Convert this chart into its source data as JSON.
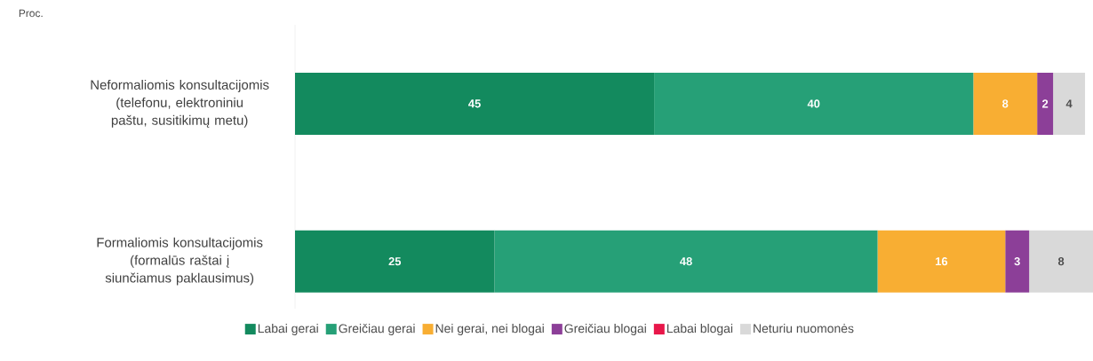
{
  "chart_data": {
    "type": "bar",
    "orientation": "horizontal",
    "stacked": true,
    "annotations": [
      "Proc."
    ],
    "categories": [
      "Neformaliomis konsultacijomis (telefonu, elektroniniu paštu, susitikimų metu)",
      "Formaliomis konsultacijomis (formalūs raštai į siunčiamus paklausimus)"
    ],
    "series": [
      {
        "name": "Labai gerai",
        "color": "#138a5e",
        "values": [
          45,
          25
        ],
        "value_labels": [
          "45",
          "25"
        ]
      },
      {
        "name": "Greičiau gerai",
        "color": "#26a077",
        "values": [
          40,
          48
        ],
        "value_labels": [
          "40",
          "48"
        ]
      },
      {
        "name": "Nei gerai, nei blogai",
        "color": "#f8ae33",
        "values": [
          8,
          16
        ],
        "value_labels": [
          "8",
          "16"
        ]
      },
      {
        "name": "Greičiau blogai",
        "color": "#8c3f98",
        "values": [
          2,
          3
        ],
        "value_labels": [
          "2",
          "3"
        ]
      },
      {
        "name": "Labai blogai",
        "color": "#e8174a",
        "values": [
          0,
          0
        ],
        "value_labels": [
          null,
          null
        ]
      },
      {
        "name": "Neturiu nuomonės",
        "color": "#d9d9d9",
        "values": [
          4,
          8
        ],
        "value_labels": [
          "4",
          "8"
        ]
      }
    ],
    "tick_labels": "y",
    "legend": "bottom"
  }
}
